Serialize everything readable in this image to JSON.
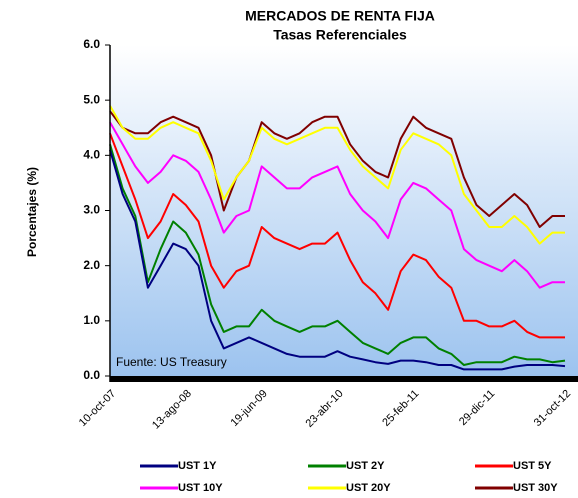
{
  "chart_data": {
    "type": "line",
    "title": "MERCADOS DE RENTA FIJA",
    "subtitle": "Tasas Referenciales",
    "y_label": "Porcentajes (%)",
    "annotation": "Fuente: US Treasury",
    "categories": [
      "10-oct-07",
      null,
      null,
      null,
      null,
      null,
      "13-ago-08",
      null,
      null,
      null,
      null,
      null,
      "19-jun-09",
      null,
      null,
      null,
      null,
      null,
      "23-abr-10",
      null,
      null,
      null,
      null,
      null,
      "25-feb-11",
      null,
      null,
      null,
      null,
      null,
      "29-dic-11",
      null,
      null,
      null,
      null,
      null,
      "31-oct-12"
    ],
    "ylim": [
      0,
      6
    ],
    "yticks": [
      {
        "value": 0,
        "label": "0.0"
      },
      {
        "value": 1,
        "label": "1.0"
      },
      {
        "value": 2,
        "label": "2.0"
      },
      {
        "value": 3,
        "label": "3.0"
      },
      {
        "value": 4,
        "label": "4.0"
      },
      {
        "value": 5,
        "label": "5.0"
      },
      {
        "value": 6,
        "label": "6.0"
      }
    ],
    "series": [
      {
        "name": "UST 1Y",
        "color": "#000080",
        "values": [
          4.1,
          3.3,
          2.8,
          1.6,
          2.0,
          2.4,
          2.3,
          2.0,
          1.0,
          0.5,
          0.6,
          0.7,
          0.6,
          0.5,
          0.4,
          0.35,
          0.35,
          0.35,
          0.45,
          0.35,
          0.3,
          0.25,
          0.22,
          0.28,
          0.28,
          0.25,
          0.2,
          0.2,
          0.12,
          0.12,
          0.12,
          0.12,
          0.17,
          0.2,
          0.2,
          0.2,
          0.18
        ]
      },
      {
        "name": "UST 2Y",
        "color": "#008000",
        "values": [
          4.2,
          3.4,
          2.9,
          1.7,
          2.3,
          2.8,
          2.6,
          2.2,
          1.3,
          0.8,
          0.9,
          0.9,
          1.2,
          1.0,
          0.9,
          0.8,
          0.9,
          0.9,
          1.0,
          0.8,
          0.6,
          0.5,
          0.4,
          0.6,
          0.7,
          0.7,
          0.5,
          0.4,
          0.2,
          0.25,
          0.25,
          0.25,
          0.35,
          0.3,
          0.3,
          0.25,
          0.28
        ]
      },
      {
        "name": "UST 5Y",
        "color": "#ff0000",
        "values": [
          4.4,
          3.8,
          3.2,
          2.5,
          2.8,
          3.3,
          3.1,
          2.8,
          2.0,
          1.6,
          1.9,
          2.0,
          2.7,
          2.5,
          2.4,
          2.3,
          2.4,
          2.4,
          2.6,
          2.1,
          1.7,
          1.5,
          1.2,
          1.9,
          2.2,
          2.1,
          1.8,
          1.6,
          1.0,
          1.0,
          0.9,
          0.9,
          1.0,
          0.8,
          0.7,
          0.7,
          0.7
        ]
      },
      {
        "name": "UST 10Y",
        "color": "#ff00ff",
        "values": [
          4.6,
          4.2,
          3.8,
          3.5,
          3.7,
          4.0,
          3.9,
          3.7,
          3.2,
          2.6,
          2.9,
          3.0,
          3.8,
          3.6,
          3.4,
          3.4,
          3.6,
          3.7,
          3.8,
          3.3,
          3.0,
          2.8,
          2.5,
          3.2,
          3.5,
          3.4,
          3.2,
          3.0,
          2.3,
          2.1,
          2.0,
          1.9,
          2.1,
          1.9,
          1.6,
          1.7,
          1.7
        ]
      },
      {
        "name": "UST 20Y",
        "color": "#ffff00",
        "values": [
          4.9,
          4.5,
          4.3,
          4.3,
          4.5,
          4.6,
          4.5,
          4.4,
          3.9,
          3.2,
          3.6,
          3.9,
          4.5,
          4.3,
          4.2,
          4.3,
          4.4,
          4.5,
          4.5,
          4.1,
          3.8,
          3.6,
          3.4,
          4.1,
          4.4,
          4.3,
          4.2,
          4.0,
          3.3,
          3.0,
          2.7,
          2.7,
          2.9,
          2.7,
          2.4,
          2.6,
          2.6
        ]
      },
      {
        "name": "UST 30Y",
        "color": "#800000",
        "values": [
          4.8,
          4.5,
          4.4,
          4.4,
          4.6,
          4.7,
          4.6,
          4.5,
          4.0,
          3.0,
          3.6,
          3.9,
          4.6,
          4.4,
          4.3,
          4.4,
          4.6,
          4.7,
          4.7,
          4.2,
          3.9,
          3.7,
          3.6,
          4.3,
          4.7,
          4.5,
          4.4,
          4.3,
          3.6,
          3.1,
          2.9,
          3.1,
          3.3,
          3.1,
          2.7,
          2.9,
          2.9
        ]
      }
    ]
  }
}
